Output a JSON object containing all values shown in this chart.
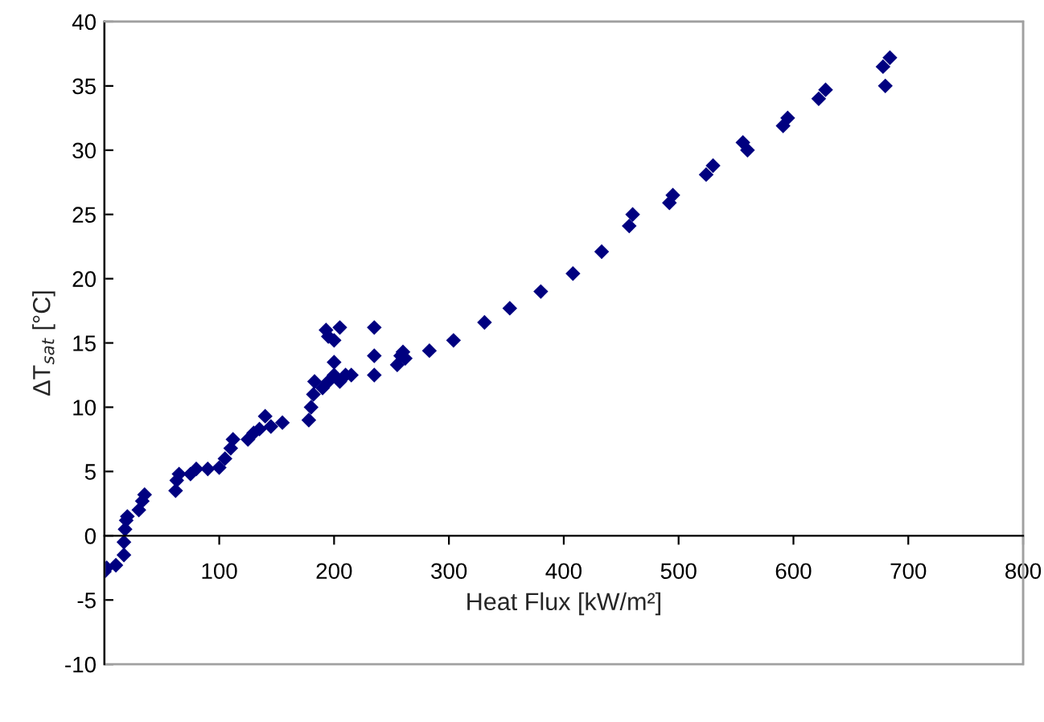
{
  "chart_data": {
    "type": "scatter",
    "xlabel": "Heat Flux [kW/m²]",
    "ylabel": "ΔT$_{sat}$ [°C]",
    "xlim": [
      0,
      800
    ],
    "xticks": [
      100,
      200,
      300,
      400,
      500,
      600,
      700,
      800
    ],
    "ylim": [
      -10,
      40
    ],
    "yticks": [
      -10,
      -5,
      0,
      5,
      10,
      15,
      20,
      25,
      30,
      35,
      40
    ],
    "grid": false,
    "legend": false,
    "marker": "diamond",
    "series": [
      {
        "color": "#000080",
        "x": [
          0,
          2,
          10,
          17,
          17,
          18,
          19,
          20,
          30,
          33,
          35,
          62,
          63,
          65,
          75,
          80,
          90,
          100,
          105,
          110,
          112,
          125,
          130,
          135,
          140,
          145,
          155,
          178,
          180,
          182,
          183,
          190,
          195,
          200,
          205,
          210,
          215,
          200,
          193,
          195,
          205,
          235,
          200,
          235,
          235,
          255,
          260,
          262,
          258,
          283,
          304,
          331,
          353,
          380,
          408,
          433,
          457,
          460,
          492,
          495,
          524,
          530,
          556,
          560,
          591,
          595,
          622,
          628,
          678,
          680,
          684
        ],
        "values": [
          -2.8,
          -2.5,
          -2.3,
          -1.5,
          -0.5,
          0.5,
          1.2,
          1.5,
          2,
          2.7,
          3.2,
          3.5,
          4.3,
          4.8,
          4.8,
          5.2,
          5.2,
          5.3,
          6,
          6.8,
          7.5,
          7.5,
          8,
          8.3,
          9.3,
          8.5,
          8.8,
          9,
          10,
          11,
          12,
          11.5,
          12,
          12.5,
          12,
          12.5,
          12.5,
          13.5,
          16,
          15.5,
          16.2,
          16.2,
          15.2,
          12.5,
          14,
          13.3,
          14.3,
          13.8,
          14,
          14.4,
          15.2,
          16.6,
          17.7,
          19,
          20.4,
          22.1,
          24.1,
          25,
          25.9,
          26.5,
          28.1,
          28.8,
          30.6,
          30,
          31.9,
          32.5,
          34,
          34.7,
          36.5,
          35,
          37.2
        ]
      }
    ]
  }
}
